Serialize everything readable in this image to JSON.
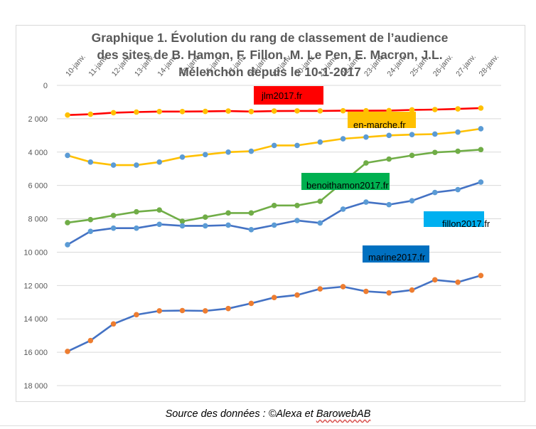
{
  "title_lines": [
    "Graphique 1. Évolution du rang de classement de l’audience",
    "des sites de B. Hamon, F. Fillon, M. Le Pen, E. Macron, J.L.",
    "Mélenchon depuis le 10-1-2017"
  ],
  "source": {
    "prefix": "Source des données : ©Alexa et ",
    "underlined": "BarowebAB"
  },
  "chart_data": {
    "type": "line",
    "title": "Graphique 1. Évolution du rang de classement de l’audience des sites de B. Hamon, F. Fillon, M. Le Pen, E. Macron, J.L. Mélenchon depuis le 10-1-2017",
    "xlabel": "",
    "ylabel": "",
    "y_inverted": true,
    "ylim": [
      0,
      18000
    ],
    "y_ticks": [
      0,
      2000,
      4000,
      6000,
      8000,
      10000,
      12000,
      14000,
      16000,
      18000
    ],
    "y_tick_labels": [
      "0",
      "2 000",
      "4 000",
      "6 000",
      "8 000",
      "10 000",
      "12 000",
      "14 000",
      "16 000",
      "18 000"
    ],
    "categories": [
      "10-janv.",
      "11-janv.",
      "12-janv.",
      "13-janv.",
      "14-janv.",
      "15-janv.",
      "16-janv.",
      "17-janv.",
      "18-janv.",
      "19-janv.",
      "20-janv.",
      "21-janv.",
      "22-janv.",
      "23-janv.",
      "24-janv.",
      "25-janv.",
      "26-janv.",
      "27-janv.",
      "28-janv."
    ],
    "grid": true,
    "series": [
      {
        "name": "jlm2017.fr",
        "color": "#ff0000",
        "marker": "#ffc000",
        "values": [
          1780,
          1730,
          1640,
          1600,
          1570,
          1570,
          1560,
          1540,
          1570,
          1540,
          1530,
          1530,
          1520,
          1520,
          1510,
          1470,
          1450,
          1410,
          1360
        ]
      },
      {
        "name": "en-marche.fr",
        "color": "#ffc000",
        "marker": "#5b9bd5",
        "values": [
          4200,
          4600,
          4780,
          4780,
          4600,
          4300,
          4150,
          4000,
          3950,
          3600,
          3600,
          3400,
          3200,
          3100,
          3000,
          2950,
          2920,
          2800,
          2600
        ]
      },
      {
        "name": "benoithamon2017.fr",
        "color": "#70ad47",
        "marker": "#70ad47",
        "values": [
          8230,
          8050,
          7800,
          7580,
          7470,
          8150,
          7900,
          7650,
          7650,
          7200,
          7200,
          6950,
          null,
          4650,
          4420,
          4200,
          4020,
          3950,
          3850
        ]
      },
      {
        "name": "fillon2017.fr",
        "color": "#4472c4",
        "marker": "#5b9bd5",
        "values": [
          9550,
          8750,
          8560,
          8560,
          8330,
          8420,
          8420,
          8380,
          8650,
          8380,
          8100,
          8250,
          7420,
          7000,
          7150,
          6920,
          6420,
          6250,
          5800
        ]
      },
      {
        "name": "marine2017.fr",
        "color": "#4472c4",
        "marker": "#ed7d31",
        "values": [
          15950,
          15300,
          14300,
          13750,
          13520,
          13500,
          13520,
          13380,
          13070,
          12720,
          12570,
          12200,
          12070,
          12350,
          12440,
          12270,
          11660,
          11800,
          11400
        ]
      }
    ],
    "labels": [
      {
        "text": "jlm2017.fr",
        "series": "jlm2017.fr",
        "fill": "#ff0000"
      },
      {
        "text": "en-marche.fr",
        "series": "en-marche.fr",
        "fill": "#ffc000"
      },
      {
        "text": "benoithamon2017.fr",
        "series": "benoithamon2017.fr",
        "fill": "#00b050"
      },
      {
        "text": "fillon2017.fr",
        "series": "fillon2017.fr",
        "fill": "#00b0f0"
      },
      {
        "text": "marine2017.fr",
        "series": "marine2017.fr",
        "fill": "#0070c0"
      }
    ]
  }
}
